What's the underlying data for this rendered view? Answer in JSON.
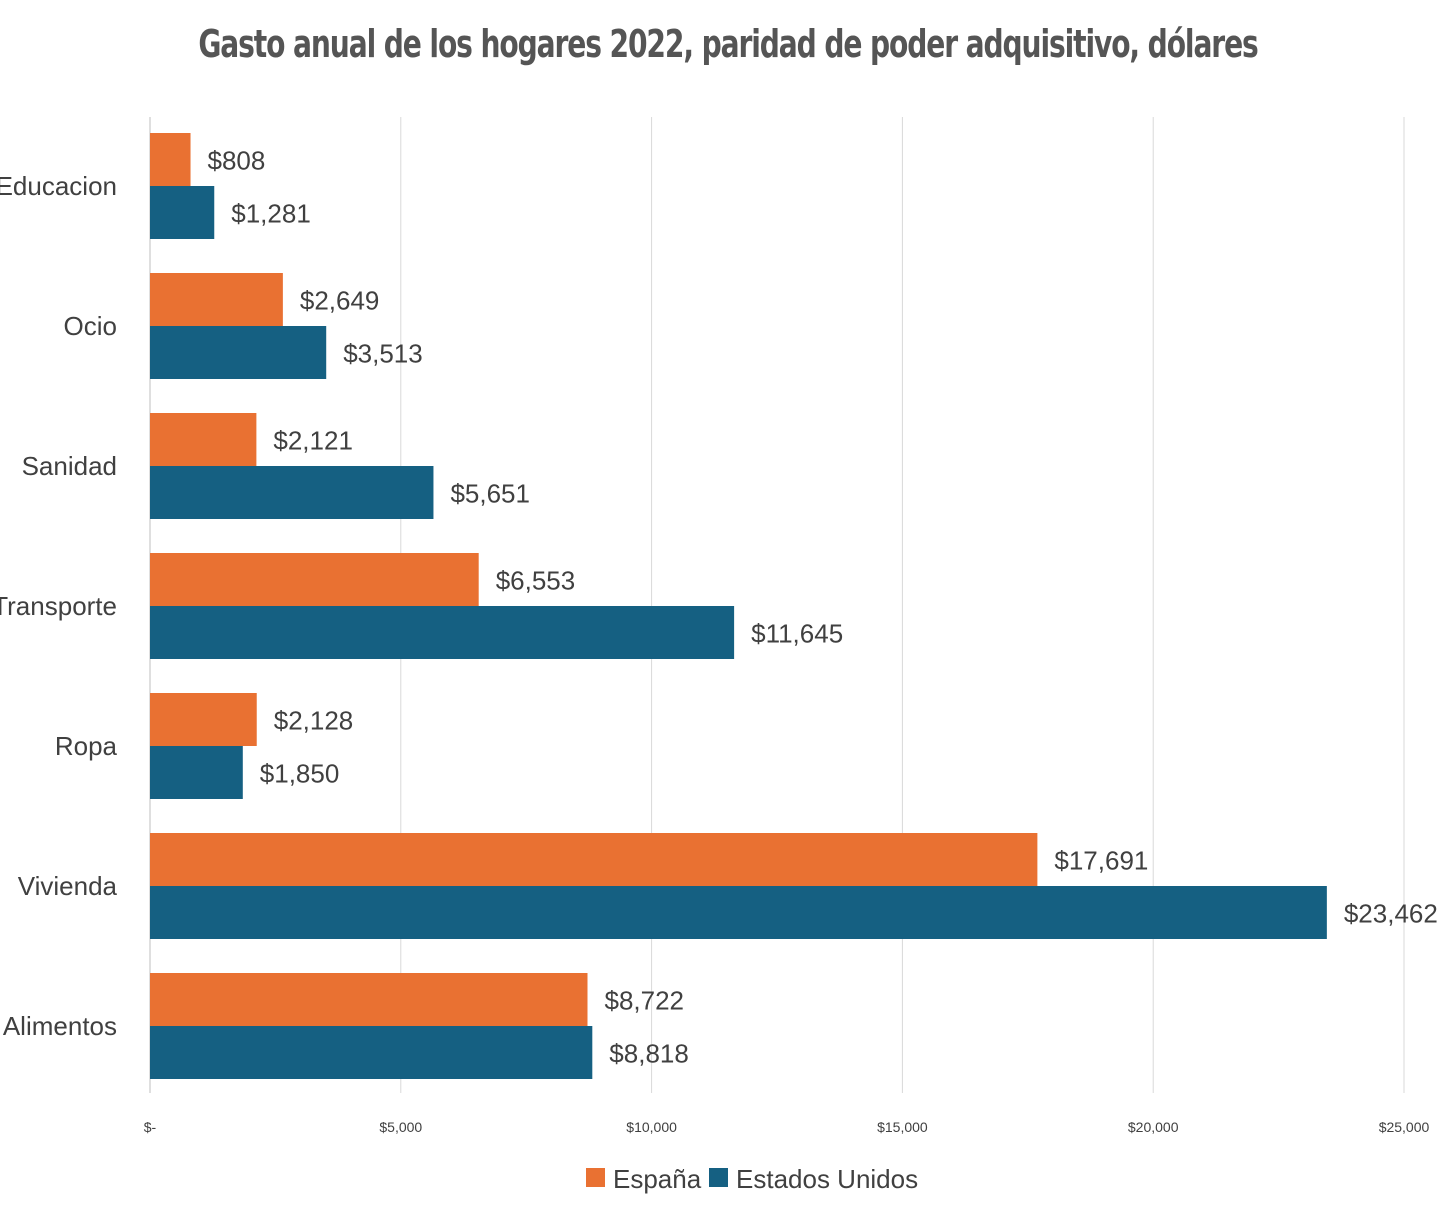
{
  "chart_data": {
    "type": "bar",
    "orientation": "horizontal",
    "title": "Gasto anual de los hogares 2022, paridad de poder adquisitivo, dólares",
    "categories": [
      "Educacion",
      "Ocio",
      "Sanidad",
      "Transporte",
      "Ropa",
      "Vivienda",
      "Alimentos"
    ],
    "series": [
      {
        "name": "España",
        "color": "#E97132",
        "values": [
          808,
          2649,
          2121,
          6553,
          2128,
          17691,
          8722
        ],
        "labels": [
          "$808",
          "$2,649",
          "$2,121",
          "$6,553",
          "$2,128",
          "$17,691",
          "$8,722"
        ]
      },
      {
        "name": "Estados Unidos",
        "color": "#156082",
        "values": [
          1281,
          3513,
          5651,
          11645,
          1850,
          23462,
          8818
        ],
        "labels": [
          "$1,281",
          "$3,513",
          "$5,651",
          "$11,645",
          "$1,850",
          "$23,462",
          "$8,818"
        ]
      }
    ],
    "xlim": [
      0,
      25000
    ],
    "x_ticks": [
      0,
      5000,
      10000,
      15000,
      20000,
      25000
    ],
    "x_tick_labels": [
      "$-",
      "$5,000",
      "$10,000",
      "$15,000",
      "$20,000",
      "$25,000"
    ],
    "grid": "vertical",
    "legend": "bottom"
  }
}
